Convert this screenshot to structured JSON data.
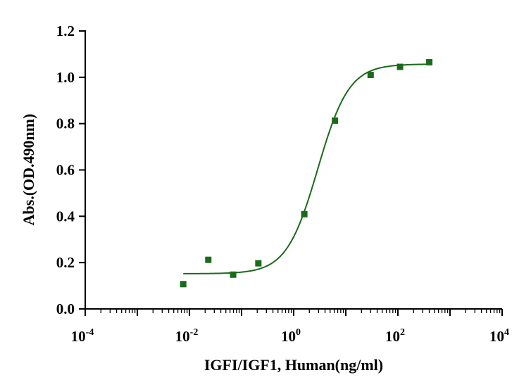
{
  "chart_data": {
    "type": "scatter",
    "title": "",
    "xlabel": "IGFI/IGF1, Human(ng/ml)",
    "ylabel": "Abs.(OD.490nm)",
    "x_scale": "log",
    "xlim": [
      0.0001,
      10000
    ],
    "ylim": [
      0,
      1.2
    ],
    "x_ticks": [
      {
        "value": 0.0001,
        "base": "10",
        "exp": "-4"
      },
      {
        "value": 0.01,
        "base": "10",
        "exp": "-2"
      },
      {
        "value": 1,
        "base": "10",
        "exp": "0"
      },
      {
        "value": 100,
        "base": "10",
        "exp": "2"
      },
      {
        "value": 10000,
        "base": "10",
        "exp": "4"
      }
    ],
    "y_ticks": [
      "0.0",
      "0.2",
      "0.4",
      "0.6",
      "0.8",
      "1.0",
      "1.2"
    ],
    "grid": false,
    "legend": "none",
    "colors": {
      "series": "#1a6b1a",
      "axis": "#000000"
    },
    "series": [
      {
        "marker": "square",
        "x": [
          0.0076,
          0.023,
          0.069,
          0.21,
          1.6,
          6.2,
          30,
          110,
          400
        ],
        "y": [
          0.107,
          0.212,
          0.148,
          0.197,
          0.409,
          0.813,
          1.01,
          1.045,
          1.065
        ]
      }
    ],
    "fit": {
      "model": "4PL",
      "bottom": 0.152,
      "top": 1.057,
      "ec50": 2.9,
      "hill": 1.45,
      "x_range": [
        0.0076,
        400
      ]
    }
  }
}
